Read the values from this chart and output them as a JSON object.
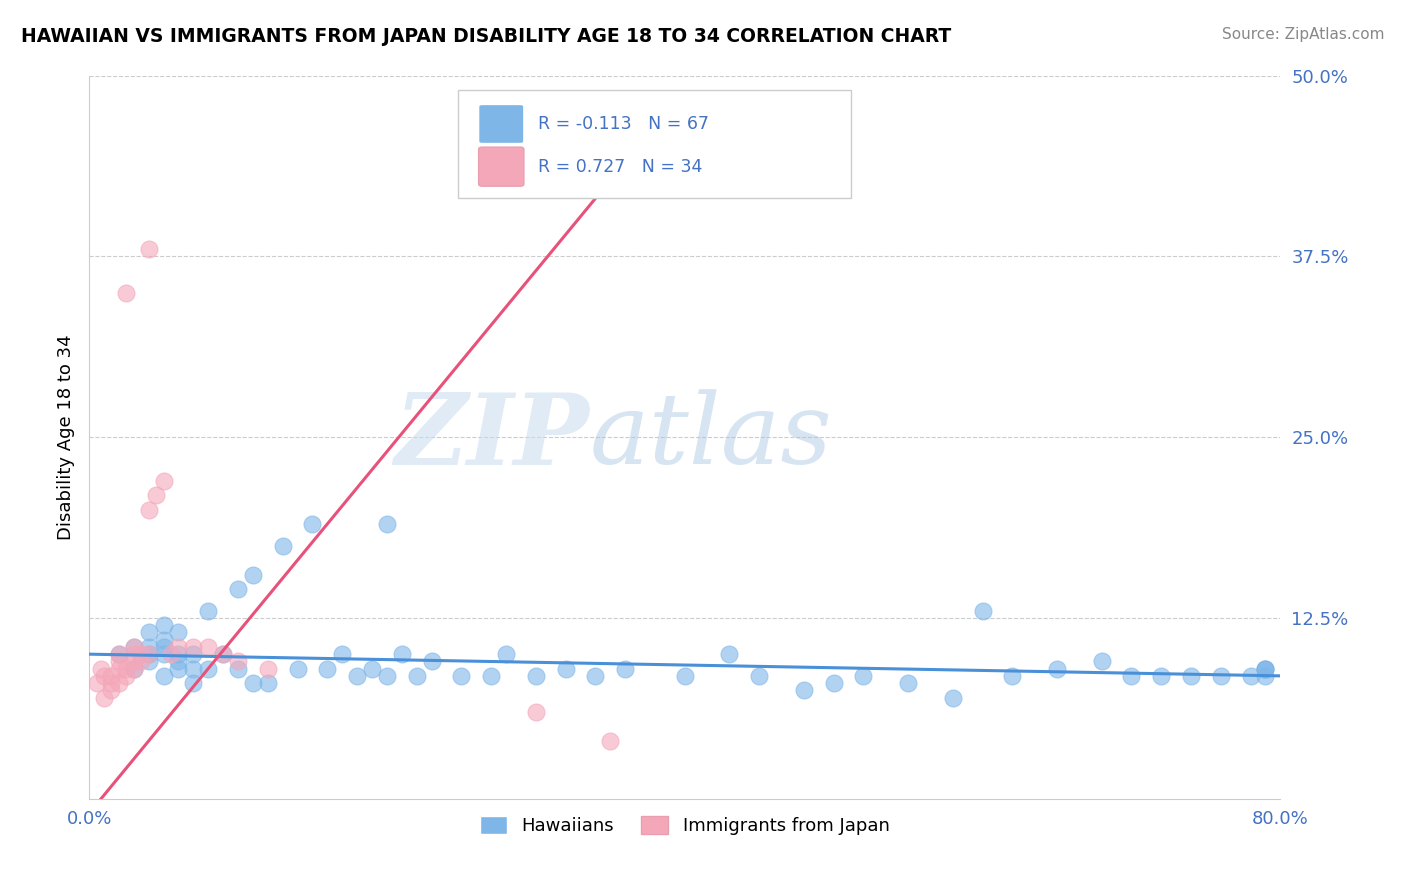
{
  "title": "HAWAIIAN VS IMMIGRANTS FROM JAPAN DISABILITY AGE 18 TO 34 CORRELATION CHART",
  "source": "Source: ZipAtlas.com",
  "ylabel": "Disability Age 18 to 34",
  "xlim": [
    0.0,
    0.8
  ],
  "ylim": [
    0.0,
    0.5
  ],
  "xticks": [
    0.0,
    0.8
  ],
  "xtick_labels": [
    "0.0%",
    "80.0%"
  ],
  "yticks": [
    0.0,
    0.125,
    0.25,
    0.375,
    0.5
  ],
  "ytick_labels": [
    "",
    "12.5%",
    "25.0%",
    "37.5%",
    "50.0%"
  ],
  "hawaiian_color": "#7EB6E8",
  "japan_color": "#F4A7B9",
  "hawaiian_line_color": "#4A90D9",
  "japan_line_color": "#E8527A",
  "R_hawaiian": -0.113,
  "N_hawaiian": 67,
  "R_japan": 0.727,
  "N_japan": 34,
  "legend_R_color": "#E05A7A",
  "legend_N_color": "#4472C4",
  "watermark_zip": "ZIP",
  "watermark_atlas": "atlas",
  "background_color": "#FFFFFF",
  "grid_color": "#CCCCCC",
  "hawaiian_x": [
    0.02,
    0.03,
    0.03,
    0.04,
    0.04,
    0.04,
    0.04,
    0.05,
    0.05,
    0.05,
    0.05,
    0.05,
    0.06,
    0.06,
    0.06,
    0.06,
    0.07,
    0.07,
    0.07,
    0.08,
    0.08,
    0.09,
    0.1,
    0.1,
    0.11,
    0.11,
    0.12,
    0.13,
    0.14,
    0.15,
    0.16,
    0.17,
    0.18,
    0.19,
    0.2,
    0.2,
    0.21,
    0.22,
    0.23,
    0.25,
    0.27,
    0.28,
    0.3,
    0.32,
    0.34,
    0.36,
    0.4,
    0.43,
    0.45,
    0.48,
    0.5,
    0.52,
    0.55,
    0.58,
    0.6,
    0.62,
    0.65,
    0.68,
    0.7,
    0.72,
    0.74,
    0.76,
    0.78,
    0.79,
    0.79,
    0.79,
    0.79
  ],
  "hawaiian_y": [
    0.1,
    0.09,
    0.105,
    0.095,
    0.1,
    0.105,
    0.115,
    0.1,
    0.085,
    0.105,
    0.11,
    0.12,
    0.09,
    0.095,
    0.1,
    0.115,
    0.08,
    0.09,
    0.1,
    0.09,
    0.13,
    0.1,
    0.09,
    0.145,
    0.08,
    0.155,
    0.08,
    0.175,
    0.09,
    0.19,
    0.09,
    0.1,
    0.085,
    0.09,
    0.19,
    0.085,
    0.1,
    0.085,
    0.095,
    0.085,
    0.085,
    0.1,
    0.085,
    0.09,
    0.085,
    0.09,
    0.085,
    0.1,
    0.085,
    0.075,
    0.08,
    0.085,
    0.08,
    0.07,
    0.13,
    0.085,
    0.09,
    0.095,
    0.085,
    0.085,
    0.085,
    0.085,
    0.085,
    0.085,
    0.09,
    0.09,
    0.09
  ],
  "japan_x": [
    0.005,
    0.008,
    0.01,
    0.01,
    0.015,
    0.015,
    0.015,
    0.02,
    0.02,
    0.02,
    0.02,
    0.025,
    0.025,
    0.025,
    0.03,
    0.03,
    0.03,
    0.03,
    0.035,
    0.035,
    0.04,
    0.04,
    0.04,
    0.045,
    0.05,
    0.055,
    0.06,
    0.07,
    0.08,
    0.09,
    0.1,
    0.12,
    0.3,
    0.35
  ],
  "japan_y": [
    0.08,
    0.09,
    0.07,
    0.085,
    0.075,
    0.08,
    0.085,
    0.08,
    0.09,
    0.095,
    0.1,
    0.085,
    0.09,
    0.35,
    0.09,
    0.095,
    0.1,
    0.105,
    0.095,
    0.1,
    0.1,
    0.2,
    0.38,
    0.21,
    0.22,
    0.1,
    0.105,
    0.105,
    0.105,
    0.1,
    0.095,
    0.09,
    0.06,
    0.04
  ]
}
